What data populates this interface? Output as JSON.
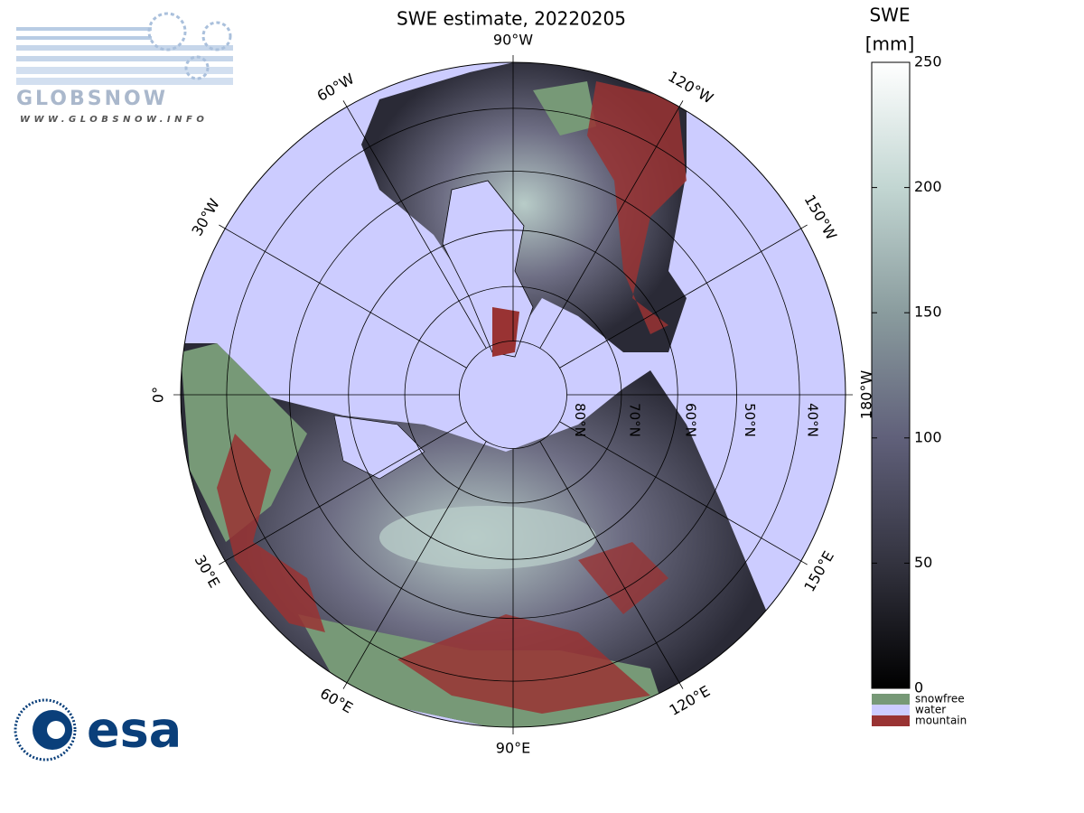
{
  "header": {
    "title": "SWE estimate, 20220205"
  },
  "map": {
    "meridians": [
      {
        "value": -90,
        "label": "90°W"
      },
      {
        "value": -60,
        "label": "60°W"
      },
      {
        "value": -30,
        "label": "30°W"
      },
      {
        "value": 0,
        "label": "0°"
      },
      {
        "value": 30,
        "label": "30°E"
      },
      {
        "value": 60,
        "label": "60°E"
      },
      {
        "value": 90,
        "label": "90°E"
      },
      {
        "value": 120,
        "label": "120°E"
      },
      {
        "value": 150,
        "label": "150°E"
      },
      {
        "value": 180,
        "label": "180°W"
      },
      {
        "value": -150,
        "label": "150°W"
      },
      {
        "value": -120,
        "label": "120°W"
      }
    ],
    "parallels": [
      {
        "value": 80,
        "label": "80°N"
      },
      {
        "value": 70,
        "label": "70°N"
      },
      {
        "value": 60,
        "label": "60°N"
      },
      {
        "value": 50,
        "label": "50°N"
      },
      {
        "value": 40,
        "label": "40°N"
      }
    ]
  },
  "colorbar": {
    "title": "SWE",
    "unit": "[mm]",
    "lim": [
      0,
      250
    ],
    "ticks": [
      0,
      50,
      100,
      150,
      200,
      250
    ]
  },
  "legend": [
    {
      "name": "snowfree",
      "color": "#779977"
    },
    {
      "name": "water",
      "color": "#ccccff"
    },
    {
      "name": "mountain",
      "color": "#993333"
    }
  ],
  "logos": {
    "globsnow": "GLOBSNOW",
    "url": "WWW.GLOBSNOW.INFO",
    "esa": "esa"
  }
}
